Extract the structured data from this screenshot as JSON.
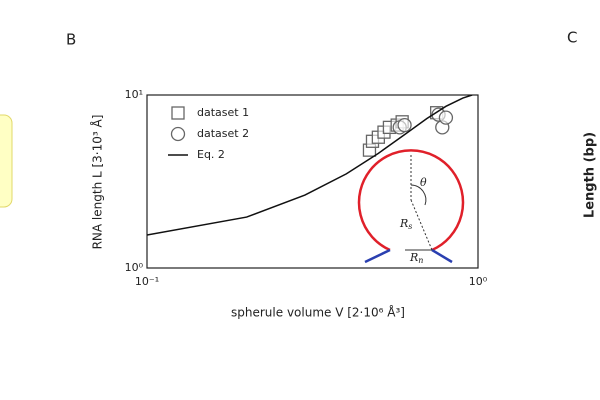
{
  "panels": {
    "left": "B",
    "right": "C",
    "right_ylabel": "Length (bp)"
  },
  "chart_data": {
    "type": "scatter",
    "xlabel": "spherule volume  V  [2·10⁶ Å³]",
    "ylabel": "RNA length  L  [3·10³ Å]",
    "xscale": "log",
    "yscale": "log",
    "xlim": [
      0.1,
      1
    ],
    "ylim": [
      1,
      10
    ],
    "xticks": [
      {
        "value": 0.1,
        "label": "10⁻¹"
      },
      {
        "value": 1,
        "label": "10⁰"
      }
    ],
    "yticks": [
      {
        "value": 1,
        "label": "10⁰"
      },
      {
        "value": 10,
        "label": "10¹"
      }
    ],
    "legend": "upper left",
    "series": [
      {
        "name": "dataset 1",
        "marker": "square",
        "color": "#666666",
        "x": [
          0.47,
          0.48,
          0.5,
          0.52,
          0.54,
          0.57,
          0.59,
          0.75
        ],
        "values": [
          4.8,
          5.4,
          5.7,
          6.1,
          6.5,
          6.7,
          7.0,
          7.9
        ]
      },
      {
        "name": "dataset 2",
        "marker": "circle",
        "color": "#666666",
        "x": [
          0.58,
          0.6,
          0.76,
          0.78,
          0.8
        ],
        "values": [
          6.5,
          6.7,
          7.7,
          6.5,
          7.4
        ]
      },
      {
        "name": "Eq. 2",
        "marker": "line",
        "color": "#111111",
        "x": [
          0.1,
          0.2,
          0.3,
          0.4,
          0.5,
          0.6,
          0.7,
          0.8,
          0.9,
          0.96
        ],
        "values": [
          1.55,
          1.97,
          2.64,
          3.5,
          4.6,
          5.9,
          7.3,
          8.6,
          9.6,
          10
        ]
      }
    ],
    "inset_labels": [
      {
        "text": "θ"
      },
      {
        "text": "R",
        "sub": "s"
      },
      {
        "text": "R",
        "sub": "n"
      }
    ]
  }
}
